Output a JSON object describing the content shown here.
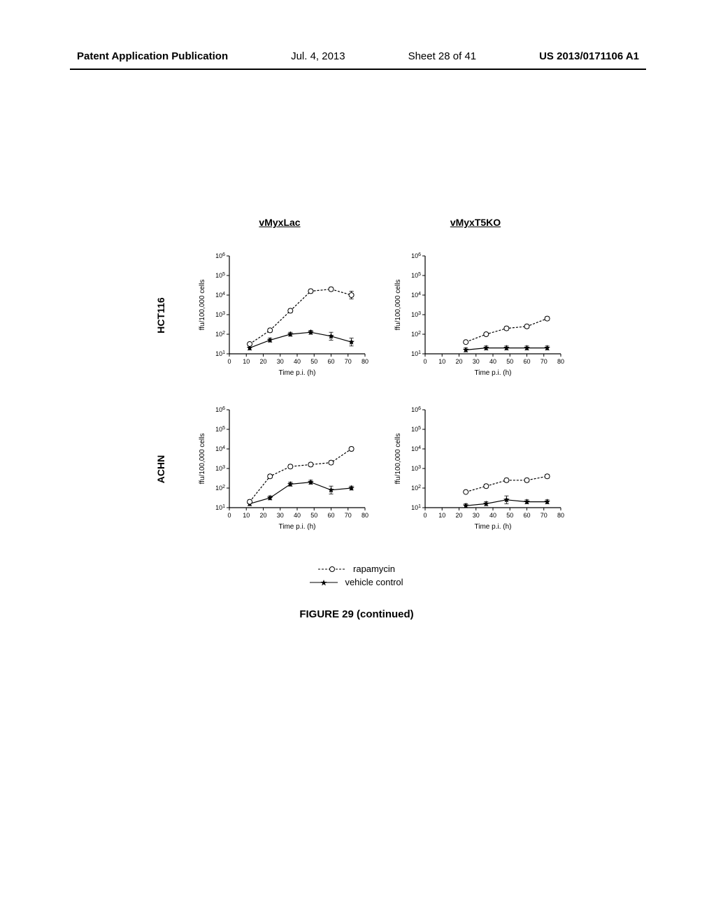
{
  "header": {
    "left": "Patent Application Publication",
    "date": "Jul. 4, 2013",
    "sheet": "Sheet 28 of 41",
    "right": "US 2013/0171106 A1"
  },
  "column_titles": [
    "vMyxLac",
    "vMyxT5KO"
  ],
  "row_titles": [
    "HCT116",
    "ACHN"
  ],
  "legend": {
    "items": [
      {
        "label": "rapamycin",
        "marker": "open-circle",
        "line": "dashed"
      },
      {
        "label": "vehicle control",
        "marker": "filled-star",
        "line": "solid"
      }
    ]
  },
  "caption": "FIGURE 29 (continued)",
  "axes": {
    "x": {
      "label": "Time p.i. (h)",
      "min": 0,
      "max": 80,
      "ticks": [
        0,
        10,
        20,
        30,
        40,
        50,
        60,
        70,
        80
      ]
    },
    "y": {
      "label": "ffu/100,000 cells",
      "min_exp": 1,
      "max_exp": 6,
      "tick_exps": [
        1,
        2,
        3,
        4,
        5,
        6
      ],
      "tick_labels": [
        "10¹",
        "10²",
        "10³",
        "10⁴",
        "10⁵",
        "10⁶"
      ]
    }
  },
  "styling": {
    "line_color": "#000000",
    "line_width": 1.2,
    "marker_size": 3.5,
    "dash_pattern": "3,2",
    "errorbar_cap": 3
  },
  "charts": {
    "hct116_lac": {
      "rapamycin": {
        "x": [
          12,
          24,
          36,
          48,
          60,
          72
        ],
        "y_exp": [
          1.5,
          2.2,
          3.2,
          4.2,
          4.3,
          4.0
        ],
        "err_exp": [
          0,
          0.1,
          0.1,
          0.1,
          0.1,
          0.2
        ]
      },
      "vehicle": {
        "x": [
          12,
          24,
          36,
          48,
          60,
          72
        ],
        "y_exp": [
          1.3,
          1.7,
          2.0,
          2.1,
          1.9,
          1.6
        ],
        "err_exp": [
          0.1,
          0.1,
          0.1,
          0.1,
          0.2,
          0.2
        ]
      }
    },
    "hct116_t5ko": {
      "rapamycin": {
        "x": [
          24,
          36,
          48,
          60,
          72
        ],
        "y_exp": [
          1.6,
          2.0,
          2.3,
          2.4,
          2.8
        ],
        "err_exp": [
          0,
          0,
          0.1,
          0.1,
          0.1
        ]
      },
      "vehicle": {
        "x": [
          24,
          36,
          48,
          60,
          72
        ],
        "y_exp": [
          1.2,
          1.3,
          1.3,
          1.3,
          1.3
        ],
        "err_exp": [
          0.1,
          0.1,
          0.1,
          0.1,
          0.1
        ]
      }
    },
    "achn_lac": {
      "rapamycin": {
        "x": [
          12,
          24,
          36,
          48,
          60,
          72
        ],
        "y_exp": [
          1.3,
          2.6,
          3.1,
          3.2,
          3.3,
          4.0
        ],
        "err_exp": [
          0.1,
          0.1,
          0.1,
          0.1,
          0.1,
          0.1
        ]
      },
      "vehicle": {
        "x": [
          12,
          24,
          36,
          48,
          60,
          72
        ],
        "y_exp": [
          1.2,
          1.5,
          2.2,
          2.3,
          1.9,
          2.0
        ],
        "err_exp": [
          0.1,
          0.1,
          0.1,
          0.1,
          0.2,
          0.1
        ]
      }
    },
    "achn_t5ko": {
      "rapamycin": {
        "x": [
          24,
          36,
          48,
          60,
          72
        ],
        "y_exp": [
          1.8,
          2.1,
          2.4,
          2.4,
          2.6
        ],
        "err_exp": [
          0,
          0.1,
          0.1,
          0.1,
          0.1
        ]
      },
      "vehicle": {
        "x": [
          24,
          36,
          48,
          60,
          72
        ],
        "y_exp": [
          1.1,
          1.2,
          1.4,
          1.3,
          1.3
        ],
        "err_exp": [
          0.1,
          0.1,
          0.2,
          0.1,
          0.1
        ]
      }
    }
  }
}
